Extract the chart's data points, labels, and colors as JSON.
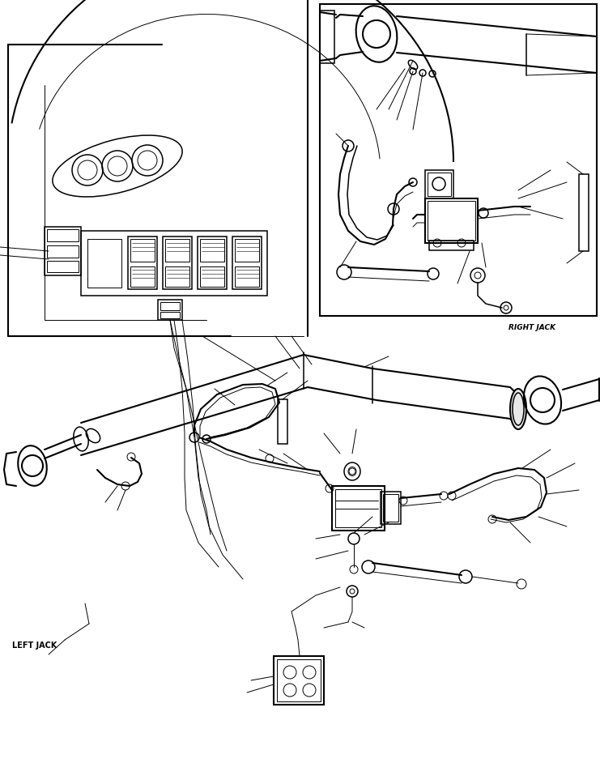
{
  "bg_color": "#ffffff",
  "line_color": "#000000",
  "fig_width": 7.41,
  "fig_height": 9.63,
  "dpi": 100,
  "right_jack_label": "RIGHT JACK",
  "left_jack_label": "LEFT JACK"
}
